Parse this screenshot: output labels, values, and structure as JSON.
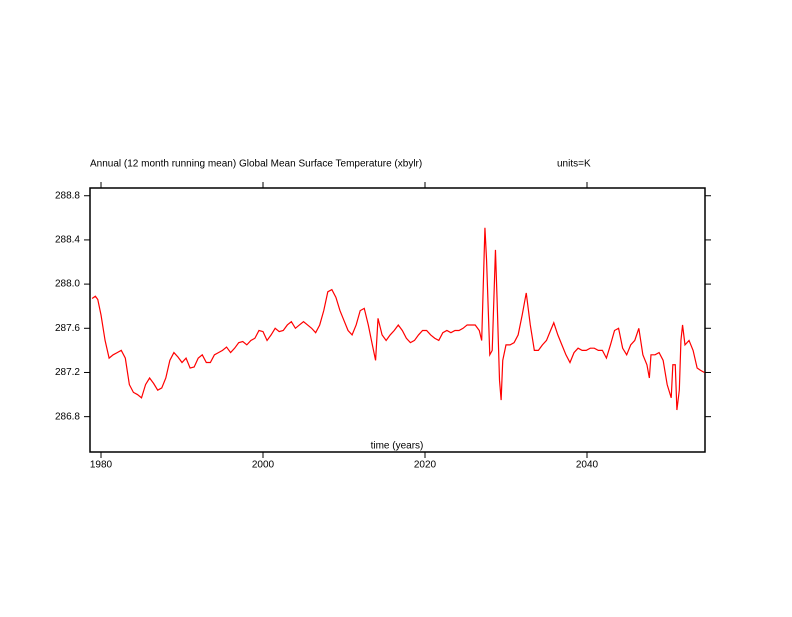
{
  "chart_data": {
    "type": "line",
    "title": "Annual (12 month running mean) Global Mean Surface Temperature (xbylr)",
    "units_label": "units=K",
    "x_label": "time (years)",
    "xlim": [
      1978.64,
      2054.57
    ],
    "ylim": [
      286.48,
      288.87
    ],
    "xticks": [
      1980,
      2000,
      2020,
      2040
    ],
    "yticks": [
      286.8,
      287.2,
      287.6,
      {
        "value": 288,
        "label": "288.0"
      },
      288.4,
      288.8
    ],
    "series": [
      {
        "name": "Global Mean Surface Temperature",
        "color": "#ff0000",
        "x": [
          1978.9,
          1979.3,
          1979.6,
          1980.0,
          1980.5,
          1981.0,
          1981.5,
          1982.0,
          1982.5,
          1983.0,
          1983.5,
          1984.0,
          1984.5,
          1985.0,
          1985.5,
          1986.0,
          1986.5,
          1987.0,
          1987.5,
          1988.0,
          1988.5,
          1989.0,
          1989.5,
          1990.0,
          1990.5,
          1991.0,
          1991.5,
          1992.0,
          1992.5,
          1993.0,
          1993.5,
          1994.0,
          1994.5,
          1995.0,
          1995.5,
          1996.0,
          1996.5,
          1997.0,
          1997.5,
          1998.0,
          1998.5,
          1999.0,
          1999.5,
          2000.0,
          2000.5,
          2001.0,
          2001.5,
          2002.0,
          2002.5,
          2003.0,
          2003.5,
          2004.0,
          2004.5,
          2005.0,
          2005.5,
          2006.0,
          2006.5,
          2007.0,
          2007.5,
          2008.0,
          2008.5,
          2009.0,
          2009.5,
          2010.0,
          2010.5,
          2011.0,
          2011.5,
          2012.0,
          2012.5,
          2013.0,
          2013.5,
          2013.9,
          2014.2,
          2014.7,
          2015.2,
          2015.7,
          2016.2,
          2016.7,
          2017.2,
          2017.7,
          2018.2,
          2018.7,
          2019.2,
          2019.7,
          2020.2,
          2020.7,
          2021.2,
          2021.7,
          2022.2,
          2022.7,
          2023.2,
          2023.7,
          2024.2,
          2024.7,
          2025.2,
          2025.7,
          2026.2,
          2026.7,
          2027.0,
          2027.4,
          2027.6,
          2028.0,
          2028.3,
          2028.7,
          2028.9,
          2029.2,
          2029.4,
          2029.6,
          2030.0,
          2030.5,
          2031.0,
          2031.5,
          2032.0,
          2032.5,
          2033.0,
          2033.5,
          2034.0,
          2034.5,
          2035.0,
          2035.5,
          2035.9,
          2036.4,
          2036.9,
          2037.4,
          2037.9,
          2038.4,
          2038.9,
          2039.4,
          2039.9,
          2040.4,
          2040.9,
          2041.4,
          2041.9,
          2042.4,
          2042.9,
          2043.4,
          2043.9,
          2044.4,
          2044.9,
          2045.4,
          2045.9,
          2046.4,
          2046.9,
          2047.4,
          2047.7,
          2047.9,
          2048.4,
          2048.9,
          2049.4,
          2049.9,
          2050.4,
          2050.6,
          2050.9,
          2051.1,
          2051.4,
          2051.6,
          2051.8,
          2052.1,
          2052.6,
          2053.1,
          2053.6,
          2054.0,
          2054.5
        ],
        "values": [
          287.87,
          287.89,
          287.86,
          287.72,
          287.49,
          287.33,
          287.36,
          287.38,
          287.4,
          287.33,
          287.09,
          287.02,
          287.0,
          286.97,
          287.09,
          287.15,
          287.1,
          287.04,
          287.06,
          287.15,
          287.31,
          287.38,
          287.34,
          287.29,
          287.33,
          287.24,
          287.25,
          287.33,
          287.36,
          287.29,
          287.29,
          287.36,
          287.38,
          287.4,
          287.43,
          287.38,
          287.42,
          287.47,
          287.48,
          287.45,
          287.49,
          287.51,
          287.58,
          287.57,
          287.49,
          287.54,
          287.6,
          287.57,
          287.58,
          287.63,
          287.66,
          287.6,
          287.63,
          287.66,
          287.63,
          287.6,
          287.56,
          287.63,
          287.76,
          287.93,
          287.95,
          287.88,
          287.76,
          287.67,
          287.58,
          287.54,
          287.63,
          287.76,
          287.78,
          287.63,
          287.45,
          287.31,
          287.69,
          287.54,
          287.49,
          287.54,
          287.58,
          287.63,
          287.58,
          287.51,
          287.47,
          287.49,
          287.54,
          287.58,
          287.58,
          287.54,
          287.51,
          287.49,
          287.56,
          287.58,
          287.56,
          287.58,
          287.58,
          287.6,
          287.63,
          287.63,
          287.63,
          287.58,
          287.49,
          288.51,
          288.22,
          287.36,
          287.4,
          288.31,
          287.86,
          287.13,
          286.95,
          287.31,
          287.45,
          287.45,
          287.47,
          287.54,
          287.72,
          287.92,
          287.63,
          287.4,
          287.4,
          287.45,
          287.49,
          287.58,
          287.65,
          287.54,
          287.45,
          287.36,
          287.29,
          287.38,
          287.42,
          287.4,
          287.4,
          287.42,
          287.42,
          287.4,
          287.4,
          287.33,
          287.45,
          287.58,
          287.6,
          287.42,
          287.36,
          287.45,
          287.49,
          287.6,
          287.36,
          287.27,
          287.15,
          287.36,
          287.36,
          287.38,
          287.31,
          287.09,
          286.97,
          287.27,
          287.27,
          286.86,
          287.04,
          287.49,
          287.63,
          287.45,
          287.49,
          287.4,
          287.24,
          287.22,
          287.2
        ]
      }
    ]
  }
}
